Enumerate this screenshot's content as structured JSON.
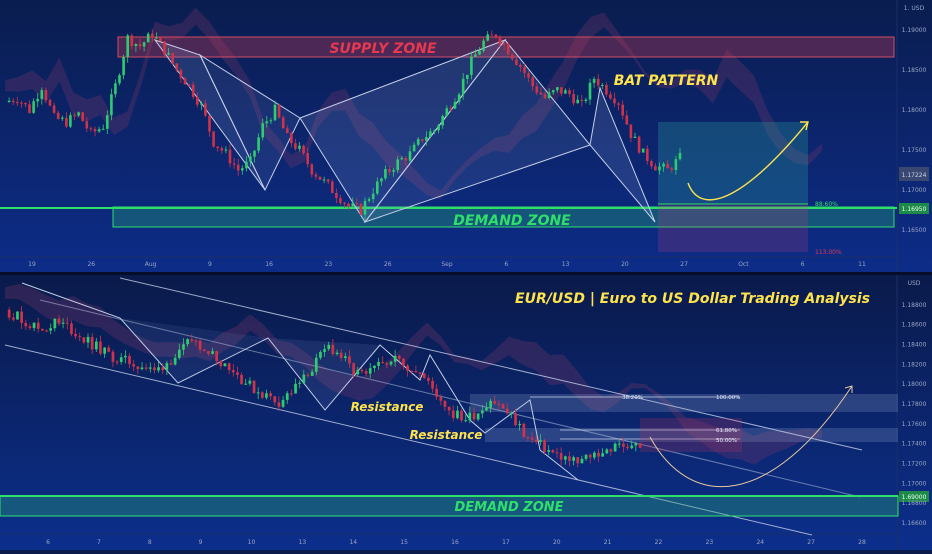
{
  "top_chart": {
    "currency_label": "1. USD",
    "supply_zone_label": "SUPPLY ZONE",
    "demand_zone_label": "DEMAND ZONE",
    "pattern_label": "BAT PATTERN",
    "price_badge": "1.17224",
    "level_badge": "1.16950",
    "fib_label_1": "88.60%",
    "fib_label_2": "113.00%",
    "colors": {
      "supply": "#d23a4e",
      "demand": "#2ee06a",
      "pattern_text": "#ffe34d",
      "arrow": "#ffe34d"
    }
  },
  "bottom_chart": {
    "currency_label": "USD",
    "title": "EUR/USD | Euro to US Dollar Trading Analysis",
    "resistance_label_1": "Resistance",
    "resistance_label_2": "Resistance",
    "demand_zone_label": "DEMAND ZONE",
    "level_badge": "1.69000",
    "fib_levels": [
      {
        "left": "38.20%",
        "right": "100.00%"
      },
      {
        "left": "61.80%",
        "right": ""
      },
      {
        "left": "50.00%",
        "right": ""
      }
    ],
    "colors": {
      "title": "#ffe34d",
      "resistance_text": "#ffe34d",
      "demand": "#2ee06a"
    }
  },
  "chart_data": [
    {
      "type": "candlestick",
      "title": "",
      "x_tick_labels": [
        "19",
        "26",
        "Aug",
        "9",
        "16",
        "23",
        "26",
        "Sep",
        "6",
        "13",
        "20",
        "27",
        "Oct",
        "6",
        "11"
      ],
      "y_tick_labels": [
        "1.19000",
        "1.18500",
        "1.18000",
        "1.17500",
        "1.17000",
        "1.16500"
      ],
      "ylim": [
        1.1625,
        1.1925
      ],
      "zones": [
        {
          "label": "SUPPLY ZONE",
          "range": [
            1.1885,
            1.1905
          ]
        },
        {
          "label": "DEMAND ZONE",
          "range": [
            1.1665,
            1.1688
          ]
        }
      ],
      "pattern": "BAT PATTERN",
      "close_path": [
        1.181,
        1.1815,
        1.18,
        1.183,
        1.179,
        1.1785,
        1.1795,
        1.177,
        1.178,
        1.183,
        1.189,
        1.188,
        1.1895,
        1.1875,
        1.185,
        1.183,
        1.1805,
        1.176,
        1.1745,
        1.1725,
        1.1735,
        1.178,
        1.18,
        1.1765,
        1.175,
        1.1725,
        1.171,
        1.1695,
        1.168,
        1.1675,
        1.17,
        1.172,
        1.1735,
        1.1745,
        1.1765,
        1.1775,
        1.18,
        1.1825,
        1.186,
        1.1885,
        1.1895,
        1.1875,
        1.1855,
        1.183,
        1.1815,
        1.1825,
        1.182,
        1.1805,
        1.184,
        1.1825,
        1.181,
        1.177,
        1.1745,
        1.173,
        1.1725,
        1.174
      ]
    },
    {
      "type": "candlestick",
      "title": "EUR/USD | Euro to US Dollar Trading Analysis",
      "x_tick_labels": [
        "6",
        "7",
        "8",
        "9",
        "10",
        "13",
        "14",
        "15",
        "16",
        "17",
        "20",
        "21",
        "22",
        "23",
        "24",
        "27",
        "28"
      ],
      "y_tick_labels": [
        "1.18800",
        "1.18600",
        "1.18400",
        "1.18200",
        "1.18000",
        "1.17800",
        "1.17600",
        "1.17400",
        "1.17200",
        "1.17000",
        "1.16800",
        "1.16600"
      ],
      "ylim": [
        1.1655,
        1.1905
      ],
      "zones": [
        {
          "label": "DEMAND ZONE",
          "range": [
            1.1668,
            1.1688
          ]
        }
      ],
      "fib_levels": [
        "38.20%",
        "61.80%",
        "50.00%",
        "100.00%"
      ],
      "close_path": [
        1.1875,
        1.1868,
        1.186,
        1.1855,
        1.1862,
        1.1858,
        1.1848,
        1.184,
        1.1832,
        1.1825,
        1.1822,
        1.1818,
        1.1812,
        1.1822,
        1.183,
        1.1845,
        1.1838,
        1.1826,
        1.1818,
        1.1805,
        1.1795,
        1.1788,
        1.1782,
        1.1792,
        1.1805,
        1.1822,
        1.1838,
        1.1828,
        1.1812,
        1.1808,
        1.1818,
        1.1828,
        1.182,
        1.1815,
        1.18,
        1.1785,
        1.177,
        1.1765,
        1.1772,
        1.1785,
        1.1775,
        1.1762,
        1.1745,
        1.1738,
        1.173,
        1.1725,
        1.172,
        1.1728,
        1.1732,
        1.1736,
        1.174,
        1.1738
      ]
    }
  ]
}
